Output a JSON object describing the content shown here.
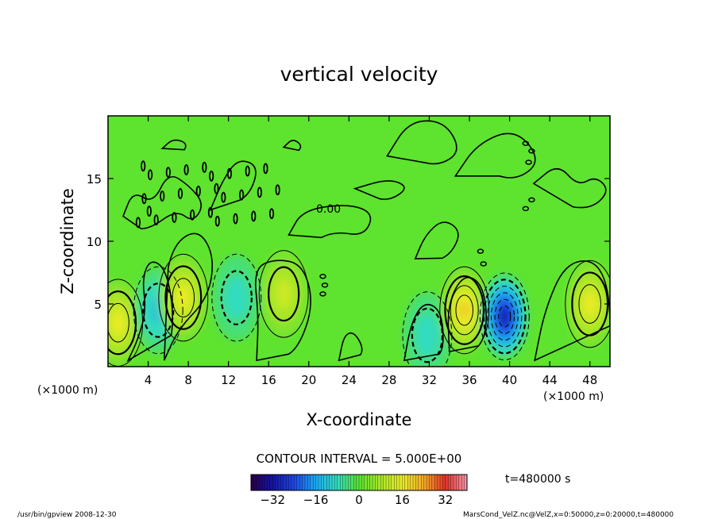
{
  "chart_data": {
    "type": "heatmap",
    "title": "vertical velocity",
    "xlabel": "X-coordinate",
    "ylabel": "Z-coordinate",
    "x_unit_left": "(×1000 m)",
    "x_unit_right": "(×1000 m)",
    "xlim": [
      0,
      50
    ],
    "ylim": [
      0,
      20
    ],
    "x_ticks": [
      "4",
      "8",
      "12",
      "16",
      "20",
      "24",
      "28",
      "32",
      "36",
      "40",
      "44",
      "48"
    ],
    "y_ticks": [
      "5",
      "10",
      "15"
    ],
    "x_tick_values": [
      4,
      8,
      12,
      16,
      20,
      24,
      28,
      32,
      36,
      40,
      44,
      48
    ],
    "y_tick_values": [
      5,
      10,
      15
    ],
    "contour_label": "0.00",
    "contour_interval": "CONTOUR INTERVAL = 5.000E+00",
    "time_label": "t=480000 s",
    "colorbar": {
      "min": -40,
      "max": 40,
      "ticks": [
        "−32",
        "−16",
        "0",
        "16",
        "32"
      ],
      "tick_values": [
        -32,
        -16,
        0,
        16,
        32
      ]
    },
    "features": [
      {
        "kind": "updraft",
        "x": 1,
        "z": 3.5,
        "peak": 16
      },
      {
        "kind": "downdraft",
        "x": 5,
        "z": 4.5,
        "peak": -12
      },
      {
        "kind": "updraft",
        "x": 7.5,
        "z": 5.5,
        "peak": 16
      },
      {
        "kind": "downdraft",
        "x": 12.8,
        "z": 5.5,
        "peak": -8
      },
      {
        "kind": "updraft",
        "x": 17.5,
        "z": 5.8,
        "peak": 12
      },
      {
        "kind": "downdraft",
        "x": 31.8,
        "z": 2.5,
        "peak": -8
      },
      {
        "kind": "updraft",
        "x": 35.5,
        "z": 4.5,
        "peak": 20
      },
      {
        "kind": "downdraft",
        "x": 39.5,
        "z": 4.0,
        "peak": -32
      },
      {
        "kind": "updraft",
        "x": 48,
        "z": 5.0,
        "peak": 16
      }
    ]
  },
  "footer": {
    "left": "/usr/bin/gpview   2008-12-30",
    "right": "MarsCond_VelZ.nc@VelZ,x=0:50000,z=0:20000,t=480000"
  }
}
